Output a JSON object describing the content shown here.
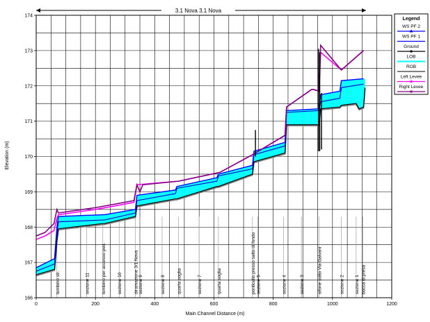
{
  "chart_data": {
    "type": "line",
    "title": "",
    "reach_label": "3.1 Nova 3.1 Nova",
    "xlabel": "Main Channel Distance (m)",
    "ylabel": "Elevation (m)",
    "xlim": [
      0,
      1200
    ],
    "ylim": [
      166,
      174
    ],
    "x_ticks": [
      0,
      200,
      400,
      600,
      800,
      1000,
      1200
    ],
    "y_ticks": [
      166,
      167,
      168,
      169,
      170,
      171,
      172,
      173,
      174
    ],
    "grid": true,
    "legend_position": "right",
    "legend": {
      "title": "Legend",
      "entries": [
        {
          "label": "WS  PF 2",
          "color": "#0000ff",
          "marker": "triangle"
        },
        {
          "label": "WS  PF 1",
          "color": "#0000ff",
          "marker": "none"
        },
        {
          "label": "Ground",
          "color": "#000000",
          "marker": "square"
        },
        {
          "label": "LOB",
          "color": "#00ffff",
          "marker": "none"
        },
        {
          "label": "ROB",
          "color": "#808080",
          "marker": "none"
        },
        {
          "label": "Left Levee",
          "color": "#ff00ff",
          "marker": "square"
        },
        {
          "label": "Right Levee",
          "color": "#800080",
          "marker": "square"
        }
      ]
    },
    "colors": {
      "ws_pf2": "#0000ff",
      "ws_pf1": "#1010cc",
      "ground": "#000000",
      "lob": "#00ffff",
      "rob": "#808080",
      "left_levee": "#ff00ff",
      "right_levee": "#800080"
    },
    "section_labels": [
      {
        "x": 70,
        "text": "tombino str."
      },
      {
        "x": 170,
        "text": "sezione 11"
      },
      {
        "x": 225,
        "text": "tombino per accesso ped."
      },
      {
        "x": 280,
        "text": "sezione 10"
      },
      {
        "x": 335,
        "text": "diramazione 3/1 Nova"
      },
      {
        "x": 350,
        "text": "sezione 9"
      },
      {
        "x": 425,
        "text": "sezione 8"
      },
      {
        "x": 480,
        "text": "quarta soglia"
      },
      {
        "x": 550,
        "text": "sezione 7"
      },
      {
        "x": 615,
        "text": "quarta soglia"
      },
      {
        "x": 730,
        "text": "ponticello presso salto di fondo"
      },
      {
        "x": 748,
        "text": "sezione 5"
      },
      {
        "x": 835,
        "text": "sezione 4"
      },
      {
        "x": 895,
        "text": "sezione 3"
      },
      {
        "x": 955,
        "text": "sifone sotto Via Galvani"
      },
      {
        "x": 1030,
        "text": "sezione 2"
      },
      {
        "x": 1080,
        "text": "sezione 1"
      },
      {
        "x": 1102,
        "text": "bocca di presa"
      }
    ],
    "series": [
      {
        "name": "Ground",
        "x": [
          0,
          60,
          62,
          70,
          75,
          225,
          230,
          335,
          340,
          470,
          475,
          610,
          615,
          730,
          735,
          840,
          845,
          955,
          960,
          1025,
          1030,
          1080,
          1090,
          1105,
          1110
        ],
        "y": [
          166.65,
          166.8,
          166.8,
          167.6,
          167.95,
          168.1,
          168.1,
          168.3,
          168.6,
          168.8,
          168.8,
          169.15,
          169.15,
          169.5,
          169.85,
          170.1,
          170.9,
          170.9,
          171.35,
          171.4,
          171.45,
          171.5,
          171.35,
          171.4,
          171.95
        ]
      },
      {
        "name": "WS  PF 1",
        "x": [
          0,
          60,
          62,
          70,
          75,
          225,
          230,
          335,
          340,
          470,
          475,
          610,
          615,
          730,
          735,
          840,
          845,
          955,
          960,
          1025,
          1030,
          1105
        ],
        "y": [
          166.75,
          166.95,
          166.95,
          167.8,
          168.15,
          168.2,
          168.2,
          168.4,
          168.75,
          168.95,
          169.1,
          169.3,
          169.45,
          169.65,
          170.05,
          170.3,
          171.25,
          171.3,
          171.55,
          171.65,
          171.95,
          172.05
        ]
      },
      {
        "name": "WS  PF 2",
        "x": [
          0,
          60,
          62,
          70,
          75,
          225,
          230,
          335,
          340,
          470,
          475,
          610,
          615,
          730,
          735,
          840,
          845,
          955,
          960,
          1025,
          1030,
          1105
        ],
        "y": [
          166.85,
          167.1,
          167.1,
          168.0,
          168.3,
          168.35,
          168.35,
          168.5,
          168.9,
          169.05,
          169.15,
          169.4,
          169.5,
          169.75,
          170.15,
          170.4,
          171.3,
          171.35,
          171.75,
          171.85,
          172.15,
          172.2
        ]
      },
      {
        "name": "Left Levee",
        "x": [
          0,
          30,
          60,
          70,
          75,
          200,
          330,
          340,
          480,
          620,
          730,
          840,
          845,
          930,
          935,
          955,
          960,
          1030,
          1105
        ],
        "y": [
          167.65,
          167.75,
          167.9,
          168.25,
          168.35,
          168.5,
          168.7,
          169.2,
          169.3,
          169.55,
          170.05,
          170.6,
          171.4,
          171.9,
          171.9,
          171.85,
          172.95,
          172.45,
          173.0
        ]
      },
      {
        "name": "Right Levee",
        "x": [
          0,
          30,
          60,
          70,
          75,
          200,
          330,
          340,
          350,
          360,
          480,
          620,
          730,
          840,
          845,
          930,
          935,
          955,
          960,
          1030,
          1105
        ],
        "y": [
          167.75,
          167.85,
          168.1,
          168.5,
          168.4,
          168.55,
          168.75,
          169.2,
          169.0,
          169.2,
          169.3,
          169.55,
          170.05,
          170.6,
          171.4,
          171.9,
          171.9,
          171.85,
          173.15,
          172.45,
          173.0
        ]
      }
    ]
  }
}
